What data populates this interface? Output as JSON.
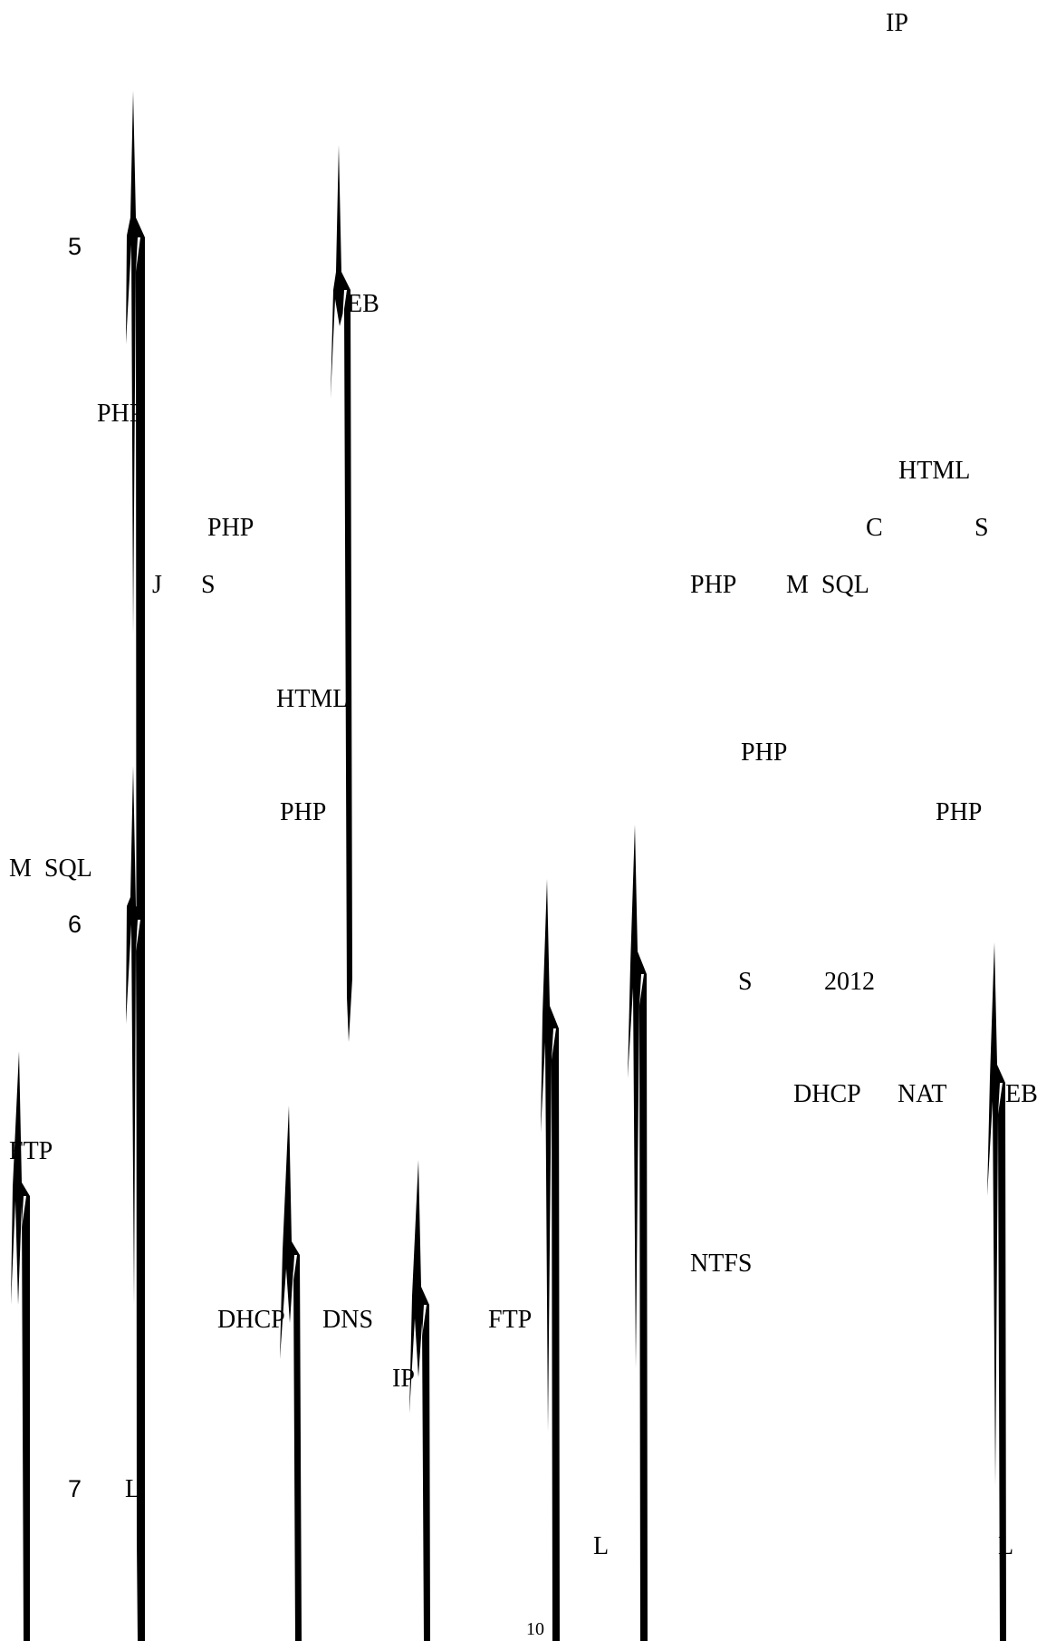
{
  "texts": {
    "ip_top": "IP",
    "n5": "5",
    "web_1": "EB",
    "php_1": "PHP",
    "html_right": "HTML",
    "php_2": "PHP",
    "c_right": "C",
    "s_right": "S",
    "j": "J",
    "s_left": "S",
    "php_mysql_php": "PHP",
    "php_mysql_sql": "M  SQL",
    "html_mid": "HTML",
    "php_right_mid": "PHP",
    "php_mid": "PHP",
    "php_far_right": "PHP",
    "mysql_left": "M  SQL",
    "n6": "6",
    "s_2012_s": "S",
    "s_2012_year": "2012",
    "dhcp_right": "DHCP",
    "nat": "NAT",
    "web_2": "EB",
    "ftp_left": "FTP",
    "ntfs": "NTFS",
    "dhcp_mid": "DHCP",
    "dns": "DNS",
    "ftp_mid": "FTP",
    "ip_mid": "IP",
    "n7": "7",
    "l_left": "L",
    "l_mid": "L",
    "l_right": "L",
    "page_number": "10"
  }
}
